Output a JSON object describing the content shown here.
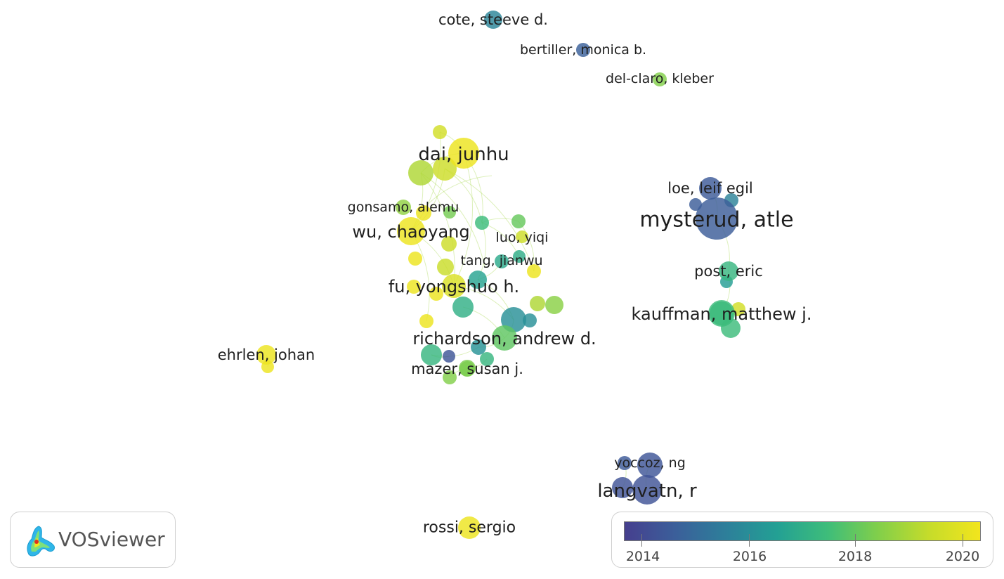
{
  "network": {
    "labeled_nodes": [
      {
        "label": "cote, steeve d.",
        "year": 2015.7
      },
      {
        "label": "bertiller, monica b.",
        "year": 2014.6
      },
      {
        "label": "del-claro, kleber",
        "year": 2018.4
      },
      {
        "label": "dai, junhu",
        "year": 2020.2
      },
      {
        "label": "gonsamo, alemu",
        "year": 2018.6
      },
      {
        "label": "wu, chaoyang",
        "year": 2020.2
      },
      {
        "label": "luo, yiqi",
        "year": 2019.5
      },
      {
        "label": "tang, jianwu",
        "year": 2016.8
      },
      {
        "label": "fu, yongshuo h.",
        "year": 2019.8
      },
      {
        "label": "richardson, andrew d.",
        "year": 2017.9
      },
      {
        "label": "mazer, susan j.",
        "year": 2018.3
      },
      {
        "label": "ehrlen, johan",
        "year": 2020.2
      },
      {
        "label": "loe, leif egil",
        "year": 2014.4
      },
      {
        "label": "mysterud, atle",
        "year": 2014.5
      },
      {
        "label": "post, eric",
        "year": 2017.2
      },
      {
        "label": "kauffman, matthew j.",
        "year": 2017.4
      },
      {
        "label": "yoccoz, ng",
        "year": 2014.3
      },
      {
        "label": "langvatn, r",
        "year": 2014.2
      },
      {
        "label": "rossi, sergio",
        "year": 2020.2
      }
    ]
  },
  "overlay_scale": {
    "ticks": [
      "2014",
      "2016",
      "2018",
      "2020"
    ],
    "min_year": 2013.6,
    "max_year": 2020.3,
    "colors": [
      "#463f8e",
      "#3b5f9a",
      "#2d7f9a",
      "#23a094",
      "#3ebd7a",
      "#82cf4a",
      "#c6dc2a",
      "#f2e51d"
    ]
  },
  "branding": {
    "app_name": "VOSviewer"
  }
}
